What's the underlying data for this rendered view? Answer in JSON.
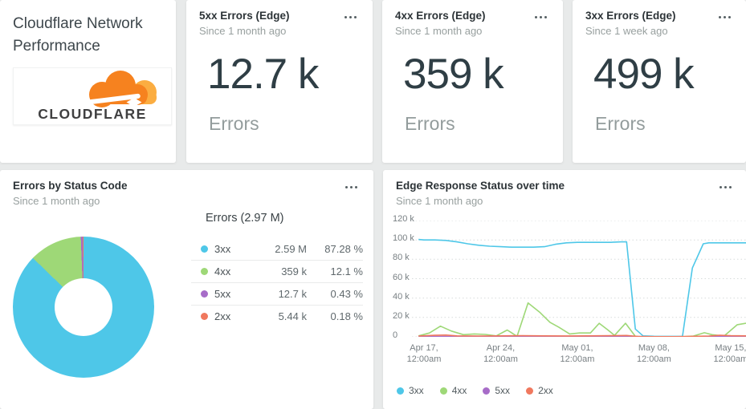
{
  "title_card": {
    "title": "Cloudflare Network Performance",
    "logo_text": "CLOUDFLARE"
  },
  "metric_cards": [
    {
      "title": "5xx Errors (Edge)",
      "subtitle": "Since 1 month ago",
      "value": "12.7 k",
      "unit": "Errors"
    },
    {
      "title": "4xx Errors (Edge)",
      "subtitle": "Since 1 month ago",
      "value": "359 k",
      "unit": "Errors"
    },
    {
      "title": "3xx Errors (Edge)",
      "subtitle": "Since 1 week ago",
      "value": "499 k",
      "unit": "Errors"
    }
  ],
  "donut_panel": {
    "title": "Errors by Status Code",
    "subtitle": "Since 1 month ago",
    "table_header": "Errors (2.97 M)"
  },
  "timeseries_panel": {
    "title": "Edge Response Status over time",
    "subtitle": "Since 1 month ago"
  },
  "colors": {
    "c3xx": "#4ec7e8",
    "c4xx": "#9ed877",
    "c5xx": "#a76cc8",
    "c2xx": "#f0785e"
  },
  "chart_data": [
    {
      "type": "pie",
      "title": "Errors by Status Code",
      "total_label": "Errors (2.97 M)",
      "donut": true,
      "segments": [
        {
          "label": "3xx",
          "value": "2.59 M",
          "pct": 87.28,
          "pct_label": "87.28 %",
          "color": "#4ec7e8"
        },
        {
          "label": "4xx",
          "value": "359 k",
          "pct": 12.1,
          "pct_label": "12.1 %",
          "color": "#9ed877"
        },
        {
          "label": "5xx",
          "value": "12.7 k",
          "pct": 0.43,
          "pct_label": "0.43 %",
          "color": "#a76cc8"
        },
        {
          "label": "2xx",
          "value": "5.44 k",
          "pct": 0.18,
          "pct_label": "0.18 %",
          "color": "#f0785e"
        }
      ]
    },
    {
      "type": "line",
      "title": "Edge Response Status over time",
      "unit": "k errors",
      "grid": "dashed",
      "legend_position": "bottom",
      "ylim": [
        0,
        120
      ],
      "x_range": [
        -1.1,
        29.4
      ],
      "y_ticks": [
        {
          "v": 120,
          "label": "120 k"
        },
        {
          "v": 100,
          "label": "100 k"
        },
        {
          "v": 80,
          "label": "80 k"
        },
        {
          "v": 60,
          "label": "60 k"
        },
        {
          "v": 40,
          "label": "40 k"
        },
        {
          "v": 20,
          "label": "20 k"
        },
        {
          "v": 0,
          "label": "0"
        }
      ],
      "x_ticks": [
        {
          "day": 0,
          "line1": "Apr 17,",
          "line2": "12:00am"
        },
        {
          "day": 7,
          "line1": "Apr 24,",
          "line2": "12:00am"
        },
        {
          "day": 14,
          "line1": "May 01,",
          "line2": "12:00am"
        },
        {
          "day": 21,
          "line1": "May 08,",
          "line2": "12:00am"
        },
        {
          "day": 28,
          "line1": "May 15,",
          "line2": "12:00am"
        }
      ],
      "series": [
        {
          "name": "3xx",
          "color": "#4ec7e8",
          "points": [
            [
              -0.5,
              100.5
            ],
            [
              0,
              100
            ],
            [
              1,
              100
            ],
            [
              2,
              99.5
            ],
            [
              3,
              98
            ],
            [
              4,
              96
            ],
            [
              5,
              94.5
            ],
            [
              6,
              93.5
            ],
            [
              7,
              93
            ],
            [
              8,
              92.5
            ],
            [
              9,
              92.5
            ],
            [
              10,
              92.5
            ],
            [
              11,
              93
            ],
            [
              12,
              95.5
            ],
            [
              13,
              97
            ],
            [
              14,
              97.5
            ],
            [
              15,
              97.5
            ],
            [
              16,
              97.5
            ],
            [
              17,
              97.5
            ],
            [
              18,
              98
            ],
            [
              18.5,
              98
            ],
            [
              19.3,
              8
            ],
            [
              20,
              1
            ],
            [
              21,
              0.6
            ],
            [
              22,
              0.5
            ],
            [
              23,
              0.5
            ],
            [
              23.6,
              0.5
            ],
            [
              24.5,
              71
            ],
            [
              25.5,
              96
            ],
            [
              26,
              97
            ],
            [
              27,
              97
            ],
            [
              28,
              97
            ],
            [
              29.4,
              97
            ]
          ]
        },
        {
          "name": "4xx",
          "color": "#9ed877",
          "points": [
            [
              -0.5,
              1
            ],
            [
              0.5,
              4
            ],
            [
              1.5,
              11
            ],
            [
              2.5,
              6
            ],
            [
              3.6,
              2.2
            ],
            [
              4.6,
              3
            ],
            [
              5.6,
              2.5
            ],
            [
              6.6,
              1
            ],
            [
              7.6,
              7
            ],
            [
              8.5,
              0.5
            ],
            [
              9.5,
              35
            ],
            [
              10.6,
              25
            ],
            [
              11.5,
              15
            ],
            [
              12.3,
              10
            ],
            [
              13.3,
              3
            ],
            [
              14.2,
              4
            ],
            [
              15.2,
              4
            ],
            [
              16,
              14
            ],
            [
              16.8,
              7
            ],
            [
              17.4,
              1.5
            ],
            [
              18.4,
              14
            ],
            [
              19.3,
              0.5
            ],
            [
              20,
              0.2
            ],
            [
              23.6,
              0.2
            ],
            [
              24.6,
              0.8
            ],
            [
              25.6,
              4.2
            ],
            [
              26.3,
              2.2
            ],
            [
              27.4,
              0.8
            ],
            [
              28.6,
              12.5
            ],
            [
              29.4,
              14
            ]
          ]
        },
        {
          "name": "5xx",
          "color": "#a76cc8",
          "points": [
            [
              -0.5,
              0.3
            ],
            [
              10,
              0.3
            ],
            [
              19,
              0.4
            ],
            [
              21,
              0.1
            ],
            [
              24,
              0.1
            ],
            [
              27,
              0.5
            ],
            [
              29.4,
              0.4
            ]
          ]
        },
        {
          "name": "2xx",
          "color": "#f0785e",
          "points": [
            [
              -0.5,
              0.8
            ],
            [
              1,
              1.6
            ],
            [
              2,
              1.8
            ],
            [
              3,
              1
            ],
            [
              5,
              0.8
            ],
            [
              7,
              1
            ],
            [
              9,
              1.2
            ],
            [
              11,
              1
            ],
            [
              13,
              0.9
            ],
            [
              15,
              1
            ],
            [
              17,
              1.2
            ],
            [
              18.5,
              1.4
            ],
            [
              19.5,
              0.4
            ],
            [
              21,
              0.2
            ],
            [
              23,
              0.2
            ],
            [
              24.5,
              0.5
            ],
            [
              26,
              0.8
            ],
            [
              27,
              1.6
            ],
            [
              28,
              1.2
            ],
            [
              29.4,
              1
            ]
          ]
        }
      ]
    }
  ]
}
